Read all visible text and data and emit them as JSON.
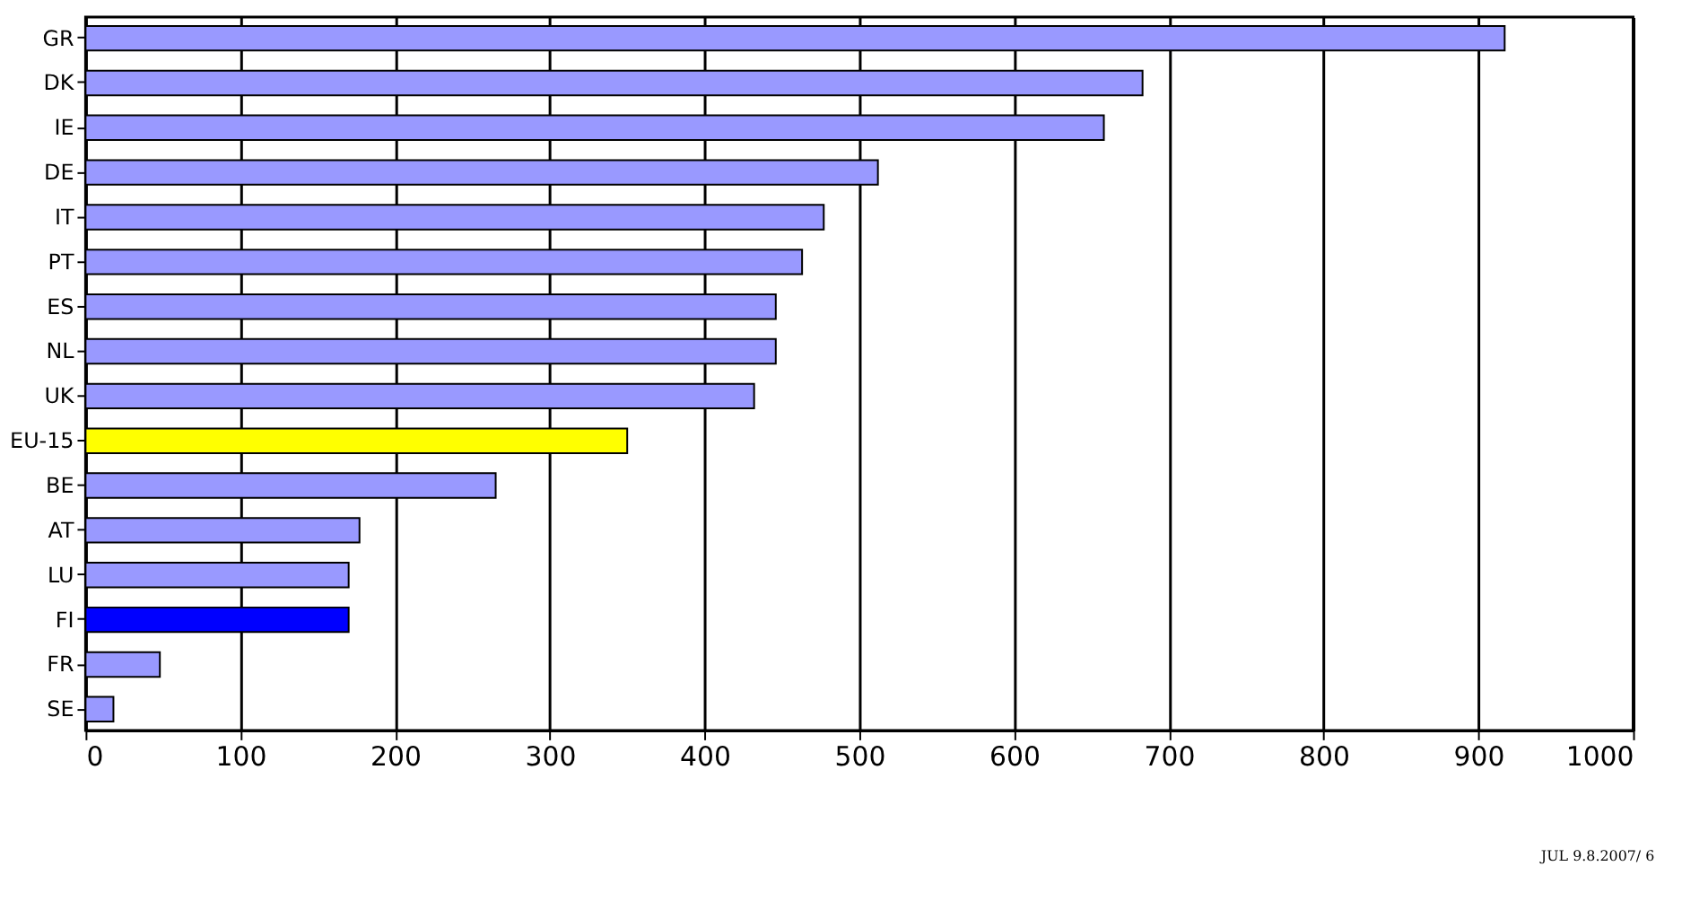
{
  "chart_data": {
    "type": "bar",
    "orientation": "horizontal",
    "categories": [
      "GR",
      "DK",
      "IE",
      "DE",
      "IT",
      "PT",
      "ES",
      "NL",
      "UK",
      "EU-15",
      "BE",
      "AT",
      "LU",
      "FI",
      "FR",
      "SE"
    ],
    "values": [
      917,
      683,
      658,
      512,
      477,
      463,
      446,
      446,
      432,
      350,
      265,
      177,
      170,
      170,
      48,
      18
    ],
    "colors": [
      "#9999ff",
      "#9999ff",
      "#9999ff",
      "#9999ff",
      "#9999ff",
      "#9999ff",
      "#9999ff",
      "#9999ff",
      "#9999ff",
      "#ffff00",
      "#9999ff",
      "#9999ff",
      "#9999ff",
      "#0000ff",
      "#9999ff",
      "#9999ff"
    ],
    "xlim": [
      0,
      1000
    ],
    "xticks": [
      0,
      100,
      200,
      300,
      400,
      500,
      600,
      700,
      800,
      900,
      1000
    ],
    "grid": "x",
    "annotations": [
      "JUL 9.8.2007/ 6"
    ]
  }
}
